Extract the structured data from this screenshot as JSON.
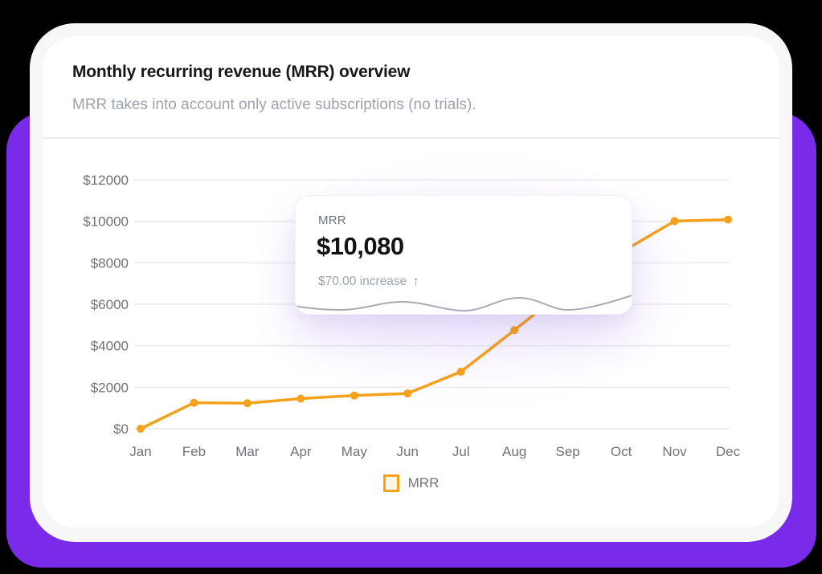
{
  "colors": {
    "canvas_background": "#000000",
    "panel_purple": "#7a2be9",
    "card_ring": "#f7f7f8",
    "card_background": "#ffffff",
    "line_orange": "#f5a11b",
    "legend_swatch_fill": "#fdf7e3",
    "grid_line": "#e9e9ee",
    "axis_label": "#71717a",
    "title_text": "#18181b",
    "subtitle_text": "#9ca3af",
    "tooltip_wave": "#a7abb3"
  },
  "header": {
    "title": "Monthly recurring revenue (MRR) overview",
    "subtitle": "MRR takes into account only active subscriptions (no trials)."
  },
  "tooltip": {
    "label": "MRR",
    "value": "$10,080",
    "delta": "$70.00 increase",
    "delta_arrow": "↑"
  },
  "legend": {
    "label": "MRR"
  },
  "chart_data": {
    "type": "line",
    "title": "Monthly recurring revenue (MRR) overview",
    "xlabel": "",
    "ylabel": "",
    "x": [
      "Jan",
      "Feb",
      "Mar",
      "Apr",
      "May",
      "Jun",
      "Jul",
      "Aug",
      "Sep",
      "Oct",
      "Nov",
      "Dec"
    ],
    "series": [
      {
        "name": "MRR",
        "values": [
          0,
          1250,
          1230,
          1450,
          1600,
          1700,
          2750,
          4750,
          6800,
          8500,
          10010,
          10080
        ]
      }
    ],
    "ylim": [
      0,
      12000
    ],
    "y_ticks": [
      0,
      2000,
      4000,
      6000,
      8000,
      10000,
      12000
    ],
    "y_tick_labels": [
      "$0",
      "$2000",
      "$4000",
      "$6000",
      "$8000",
      "$10000",
      "$12000"
    ],
    "grid": "horizontal",
    "legend_position": "bottom",
    "note": "Sep and Oct data points are obscured by the hover tooltip; their values are estimated from the visible line slope. Tooltip shows Dec = $10,080 with $70.00 increase over Nov."
  }
}
